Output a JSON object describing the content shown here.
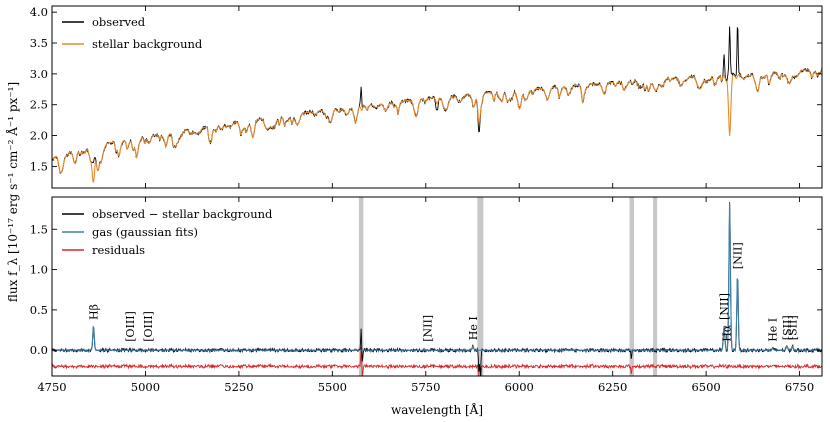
{
  "chart_data": [
    {
      "type": "line",
      "panel": "top",
      "ylabel": "flux f_λ [10⁻¹⁷ erg s⁻¹ cm⁻² Å⁻¹ px⁻¹]",
      "xlim": [
        4750,
        6810
      ],
      "ylim": [
        1.15,
        4.1
      ],
      "yticks": [
        1.5,
        2.0,
        2.5,
        3.0,
        3.5,
        4.0
      ],
      "ytick_labels": [
        "1.5",
        "2.0",
        "2.5",
        "3.0",
        "3.5",
        "4.0"
      ],
      "legend": {
        "placement": "top-left"
      },
      "series": [
        {
          "name": "observed",
          "color": "#000000"
        },
        {
          "name": "stellar background",
          "color": "#e8892a"
        }
      ],
      "continuum": {
        "x": [
          4750,
          5000,
          5250,
          5500,
          5750,
          6000,
          6250,
          6500,
          6810
        ],
        "y": [
          1.72,
          1.98,
          2.22,
          2.43,
          2.6,
          2.74,
          2.86,
          2.97,
          3.08
        ]
      },
      "absorption_lines": [
        {
          "x": 4861,
          "depth_background": 0.5,
          "depth_observed": 0.15
        },
        {
          "x": 5175,
          "depth_background": 0.2,
          "depth_observed": 0.2
        },
        {
          "x": 5270,
          "depth_background": 0.15,
          "depth_observed": 0.15
        },
        {
          "x": 5780,
          "depth_background": 0.1,
          "depth_observed": 0.22
        },
        {
          "x": 5892,
          "depth_background": 0.4,
          "depth_observed": 0.55
        },
        {
          "x": 6563,
          "depth_background": 1.0,
          "depth_observed": 0.0
        }
      ],
      "observed_emission": [
        {
          "x": 5577,
          "peak": 0.35
        },
        {
          "x": 6548,
          "peak": 0.35
        },
        {
          "x": 6563,
          "peak": 0.8
        },
        {
          "x": 6584,
          "peak": 0.85
        }
      ]
    },
    {
      "type": "line",
      "panel": "bottom",
      "xlabel": "wavelength [Å]",
      "xlim": [
        4750,
        6810
      ],
      "xticks": [
        4750,
        5000,
        5250,
        5500,
        5750,
        6000,
        6250,
        6500,
        6750
      ],
      "xtick_labels": [
        "4750",
        "5000",
        "5250",
        "5500",
        "5750",
        "6000",
        "6250",
        "6500",
        "6750"
      ],
      "ylim": [
        -0.32,
        1.9
      ],
      "yticks": [
        0.0,
        0.5,
        1.0,
        1.5
      ],
      "ytick_labels": [
        "0.0",
        "0.5",
        "1.0",
        "1.5"
      ],
      "legend": {
        "placement": "top-left"
      },
      "series": [
        {
          "name": "observed − stellar background",
          "color": "#000000"
        },
        {
          "name": "gas (gaussian fits)",
          "color": "#3f7ea6"
        },
        {
          "name": "residuals",
          "color": "#d62728"
        }
      ],
      "residual_offset": -0.2,
      "masked_regions": [
        [
          5571,
          5583
        ],
        [
          5888,
          5904
        ],
        [
          6295,
          6307
        ],
        [
          6358,
          6369
        ]
      ],
      "gas_lines": [
        {
          "label": "Hβ",
          "x": 4861,
          "peak": 0.3
        },
        {
          "label": "[OIII]",
          "x": 4959,
          "peak": 0.0
        },
        {
          "label": "[OIII]",
          "x": 5007,
          "peak": 0.0
        },
        {
          "label": "[NII]",
          "x": 5755,
          "peak": 0.0
        },
        {
          "label": "He I",
          "x": 5876,
          "peak": 0.05
        },
        {
          "label": "[NII]",
          "x": 6548,
          "peak": 0.3
        },
        {
          "label": "Hα",
          "x": 6563,
          "peak": 1.83
        },
        {
          "label": "[NII]",
          "x": 6584,
          "peak": 0.93
        },
        {
          "label": "He I",
          "x": 6678,
          "peak": 0.02
        },
        {
          "label": "[SII]",
          "x": 6716,
          "peak": 0.05
        },
        {
          "label": "[SII]",
          "x": 6731,
          "peak": 0.05
        }
      ],
      "observed_spikes": [
        {
          "x": 5577,
          "value": 0.27
        },
        {
          "x": 5580,
          "value": -0.15
        },
        {
          "x": 5892,
          "value": -0.25
        },
        {
          "x": 5896,
          "value": -0.35
        },
        {
          "x": 6300,
          "value": -0.1
        }
      ],
      "line_labels": [
        {
          "text": "Hβ",
          "x": 4861
        },
        {
          "text": "[OIII]",
          "x": 4959
        },
        {
          "text": "[OIII]",
          "x": 5007
        },
        {
          "text": "[NII]",
          "x": 5755
        },
        {
          "text": "He I",
          "x": 5876
        },
        {
          "text": "[NII]",
          "x": 6548
        },
        {
          "text": "Hα",
          "x": 6555
        },
        {
          "text": "[NII]",
          "x": 6584
        },
        {
          "text": "He I",
          "x": 6678
        },
        {
          "text": "[SII]",
          "x": 6716
        },
        {
          "text": "[SII]",
          "x": 6731
        }
      ]
    }
  ]
}
